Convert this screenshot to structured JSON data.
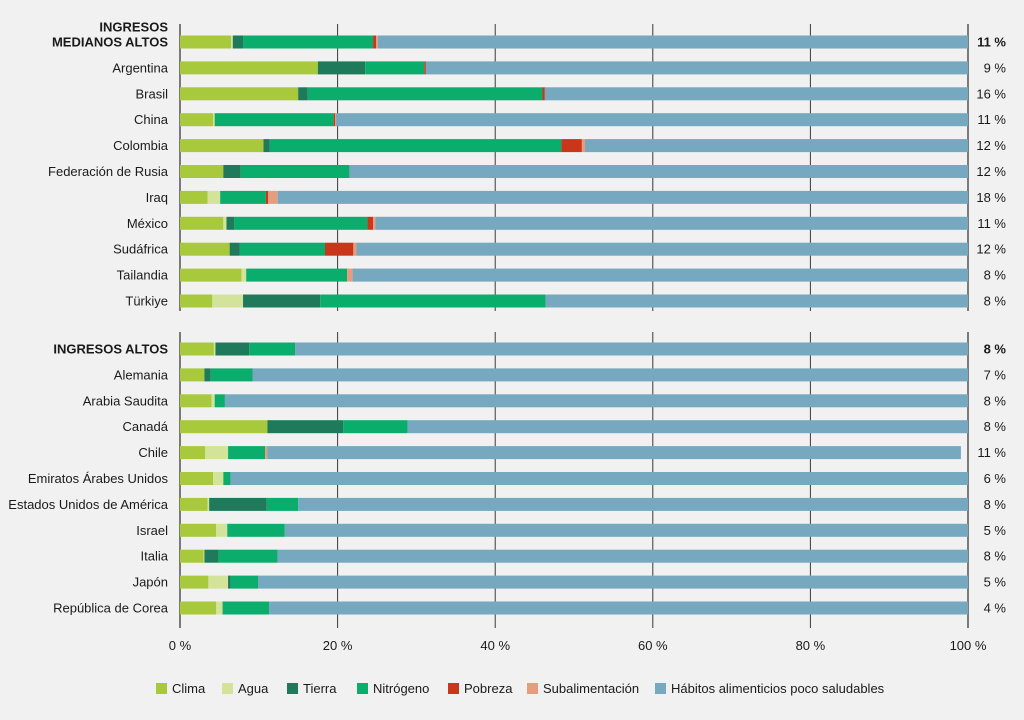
{
  "chart_data": {
    "type": "bar",
    "orientation": "horizontal",
    "stacked": true,
    "xlim": [
      0,
      100
    ],
    "x_ticks": [
      "0 %",
      "20 %",
      "40 %",
      "60 %",
      "80 %",
      "100 %"
    ],
    "series": [
      {
        "key": "clima",
        "name": "Clima",
        "color": "#a8c93b"
      },
      {
        "key": "agua",
        "name": "Agua",
        "color": "#d3e39a"
      },
      {
        "key": "tierra",
        "name": "Tierra",
        "color": "#1e7a5a"
      },
      {
        "key": "nitrogeno",
        "name": "Nitrógeno",
        "color": "#0aad6b"
      },
      {
        "key": "pobreza",
        "name": "Pobreza",
        "color": "#c9361a"
      },
      {
        "key": "subalimentacion",
        "name": "Subalimentación",
        "color": "#e59d7e"
      },
      {
        "key": "habitos",
        "name": "Hábitos alimenticios poco saludables",
        "color": "#76a8bf"
      }
    ],
    "groups": [
      {
        "rows": [
          {
            "label": [
              "INGRESOS",
              "MEDIANOS ALTOS"
            ],
            "group": true,
            "pct": "11 %",
            "values": [
              6.5,
              0.2,
              1.3,
              16.5,
              0.4,
              0.2,
              74.9
            ]
          },
          {
            "label": [
              "Argentina"
            ],
            "group": false,
            "pct": "9 %",
            "values": [
              17.5,
              0,
              6.0,
              7.5,
              0.2,
              0,
              68.8
            ]
          },
          {
            "label": [
              "Brasil"
            ],
            "group": false,
            "pct": "16 %",
            "values": [
              15.0,
              0,
              1.2,
              29.8,
              0.3,
              0,
              53.7
            ]
          },
          {
            "label": [
              "China"
            ],
            "group": false,
            "pct": "11 %",
            "values": [
              4.2,
              0.2,
              0,
              15.1,
              0.2,
              0.1,
              80.2
            ]
          },
          {
            "label": [
              "Colombia"
            ],
            "group": false,
            "pct": "12 %",
            "values": [
              10.6,
              0,
              0.8,
              37.0,
              2.6,
              0.4,
              48.6
            ]
          },
          {
            "label": [
              "Federación de Rusia"
            ],
            "group": false,
            "pct": "12 %",
            "values": [
              5.5,
              0,
              2.2,
              13.8,
              0,
              0,
              78.5
            ]
          },
          {
            "label": [
              "Iraq"
            ],
            "group": false,
            "pct": "18 %",
            "values": [
              3.5,
              1.6,
              0,
              5.8,
              0.3,
              1.2,
              87.6
            ]
          },
          {
            "label": [
              "México"
            ],
            "group": false,
            "pct": "11 %",
            "values": [
              5.5,
              0.4,
              1.0,
              16.9,
              0.7,
              0.3,
              75.2
            ]
          },
          {
            "label": [
              "Sudáfrica"
            ],
            "group": false,
            "pct": "12 %",
            "values": [
              6.3,
              0,
              1.3,
              10.8,
              3.6,
              0.4,
              77.6
            ]
          },
          {
            "label": [
              "Tailandia"
            ],
            "group": false,
            "pct": "8 %",
            "values": [
              7.8,
              0.6,
              0,
              12.8,
              0,
              0.7,
              78.1
            ]
          },
          {
            "label": [
              "Türkiye"
            ],
            "group": false,
            "pct": "8 %",
            "values": [
              4.1,
              3.9,
              9.8,
              28.6,
              0,
              0,
              53.6
            ]
          }
        ]
      },
      {
        "rows": [
          {
            "label": [
              "INGRESOS ALTOS"
            ],
            "group": true,
            "pct": "8 %",
            "values": [
              4.3,
              0.2,
              4.3,
              5.8,
              0,
              0,
              85.4
            ]
          },
          {
            "label": [
              "Alemania"
            ],
            "group": false,
            "pct": "7 %",
            "values": [
              3.1,
              0,
              0.8,
              5.3,
              0,
              0,
              90.8
            ]
          },
          {
            "label": [
              "Arabia Saudita"
            ],
            "group": false,
            "pct": "8 %",
            "values": [
              4.0,
              0.4,
              0,
              1.3,
              0,
              0,
              94.3
            ]
          },
          {
            "label": [
              "Canadá"
            ],
            "group": false,
            "pct": "8 %",
            "values": [
              11.1,
              0,
              9.6,
              8.2,
              0,
              0,
              71.1
            ]
          },
          {
            "label": [
              "Chile"
            ],
            "group": false,
            "pct": "11 %",
            "values": [
              3.2,
              2.9,
              0,
              4.7,
              0,
              0.3,
              88.0
            ]
          },
          {
            "label": [
              "Emiratos Árabes Unidos"
            ],
            "group": false,
            "pct": "6 %",
            "values": [
              4.2,
              1.3,
              0,
              0.9,
              0,
              0,
              93.6
            ]
          },
          {
            "label": [
              "Estados Unidos de América"
            ],
            "group": false,
            "pct": "8 %",
            "values": [
              3.5,
              0.2,
              7.3,
              4.0,
              0,
              0,
              85.0
            ]
          },
          {
            "label": [
              "Israel"
            ],
            "group": false,
            "pct": "5 %",
            "values": [
              4.6,
              1.4,
              0,
              7.3,
              0,
              0,
              86.7
            ]
          },
          {
            "label": [
              "Italia"
            ],
            "group": false,
            "pct": "8 %",
            "values": [
              3.0,
              0.1,
              1.8,
              7.5,
              0,
              0,
              87.6
            ]
          },
          {
            "label": [
              "Japón"
            ],
            "group": false,
            "pct": "5 %",
            "values": [
              3.6,
              2.5,
              0.3,
              3.5,
              0,
              0,
              90.1
            ]
          },
          {
            "label": [
              "República de Corea"
            ],
            "group": false,
            "pct": "4 %",
            "values": [
              4.6,
              0.8,
              0,
              5.9,
              0,
              0,
              88.7
            ]
          }
        ]
      }
    ]
  }
}
